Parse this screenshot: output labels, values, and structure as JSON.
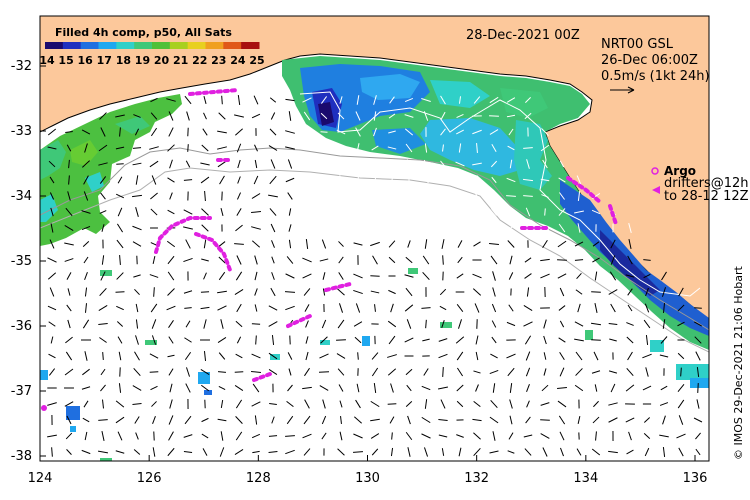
{
  "map": {
    "date": "28-Dec-2021 00Z",
    "colorbar_title": "Filled 4h comp, p50, All Sats",
    "colorbar_ticks": [
      "14",
      "15",
      "16",
      "17",
      "18",
      "19",
      "20",
      "21",
      "22",
      "23",
      "24",
      "25"
    ],
    "colorbar_colors": [
      "#1a0a6e",
      "#1f2fbf",
      "#1f6fe0",
      "#1fa8f0",
      "#2fd0c8",
      "#3fc878",
      "#4fc038",
      "#a8d020",
      "#e8d020",
      "#f0a020",
      "#e05818",
      "#a81010"
    ],
    "current_source": "NRT00 GSL",
    "current_date": "26-Dec 06:00Z",
    "current_scale": "0.5m/s (1kt 24h)",
    "argo_label": "Argo",
    "drifter_label_1": "drifters@12h",
    "drifter_label_2": "to 28-12 12Z",
    "credit": "© IMOS 29-Dec-2021 21:06 Hobart",
    "x_ticks": [
      "124",
      "126",
      "128",
      "130",
      "132",
      "134",
      "136"
    ],
    "y_ticks": [
      "-32",
      "-33",
      "-34",
      "-35",
      "-36",
      "-37",
      "-38"
    ],
    "land_color": "#fcc89b",
    "drifter_color": "#e020e0"
  }
}
